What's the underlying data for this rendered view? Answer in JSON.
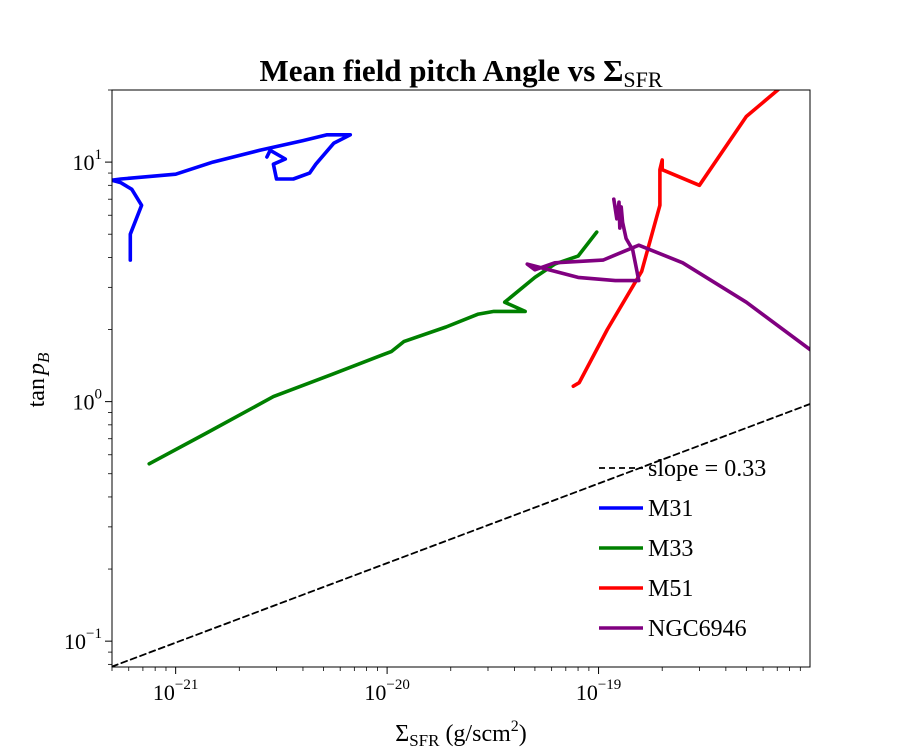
{
  "chart_data": {
    "type": "line",
    "title": "Mean field pitch Angle vs Σ",
    "title_sub": "SFR",
    "xlabel": {
      "base": "Σ",
      "sub": "SFR",
      "rest": " (g/scm",
      "sup": "2",
      "close": ")"
    },
    "ylabel": {
      "pre": "tan",
      "var": "p",
      "sub": "B"
    },
    "x_scale": "log",
    "y_scale": "log",
    "xlim": [
      5e-22,
      1e-18
    ],
    "ylim": [
      0.078,
      20
    ],
    "x_ticks": [
      {
        "value": 1e-21,
        "base": "10",
        "exp": "−21"
      },
      {
        "value": 1e-20,
        "base": "10",
        "exp": "−20"
      },
      {
        "value": 1e-19,
        "base": "10",
        "exp": "−19"
      }
    ],
    "y_ticks": [
      {
        "value": 0.1,
        "base": "10",
        "exp": "−1"
      },
      {
        "value": 1,
        "base": "10",
        "exp": "0"
      },
      {
        "value": 10,
        "base": "10",
        "exp": "1"
      }
    ],
    "grid": false,
    "legend_position": "lower-right",
    "series": [
      {
        "name": "slope = 0.33",
        "color": "#000000",
        "style": "dashed",
        "points": [
          [
            5e-22,
            0.0783
          ],
          [
            1e-18,
            0.977
          ]
        ]
      },
      {
        "name": "M31",
        "color": "#0000ff",
        "style": "solid",
        "points": [
          [
            6.1e-22,
            3.9
          ],
          [
            6.1e-22,
            5.0
          ],
          [
            6.9e-22,
            6.6
          ],
          [
            6.2e-22,
            7.7
          ],
          [
            5.5e-22,
            8.2
          ],
          [
            5e-22,
            8.4
          ],
          [
            5.5e-22,
            8.5
          ],
          [
            1e-21,
            8.9
          ],
          [
            1.5e-21,
            10.0
          ],
          [
            2.5e-21,
            11.2
          ],
          [
            4e-21,
            12.3
          ],
          [
            5.2e-21,
            13.0
          ],
          [
            6.7e-21,
            13.0
          ],
          [
            5.6e-21,
            12.0
          ],
          [
            4.6e-21,
            9.8
          ],
          [
            4.3e-21,
            9.0
          ],
          [
            3.6e-21,
            8.5
          ],
          [
            3e-21,
            8.5
          ],
          [
            2.9e-21,
            9.8
          ],
          [
            3.3e-21,
            10.3
          ],
          [
            2.8e-21,
            11.2
          ],
          [
            2.7e-21,
            10.5
          ]
        ]
      },
      {
        "name": "M33",
        "color": "#008000",
        "style": "solid",
        "points": [
          [
            7.5e-22,
            0.55
          ],
          [
            1.4e-21,
            0.74
          ],
          [
            2.9e-21,
            1.05
          ],
          [
            5.5e-21,
            1.3
          ],
          [
            1.05e-20,
            1.62
          ],
          [
            1.2e-20,
            1.78
          ],
          [
            1.9e-20,
            2.05
          ],
          [
            2.7e-20,
            2.32
          ],
          [
            3.2e-20,
            2.38
          ],
          [
            4.5e-20,
            2.38
          ],
          [
            3.6e-20,
            2.6
          ],
          [
            5e-20,
            3.3
          ],
          [
            6.2e-20,
            3.75
          ],
          [
            8e-20,
            4.05
          ],
          [
            9.8e-20,
            5.1
          ]
        ]
      },
      {
        "name": "M51",
        "color": "#ff0000",
        "style": "solid",
        "points": [
          [
            7.6e-20,
            1.16
          ],
          [
            8.1e-20,
            1.2
          ],
          [
            1.1e-19,
            2.0
          ],
          [
            1.6e-19,
            3.5
          ],
          [
            1.95e-19,
            6.6
          ],
          [
            1.95e-19,
            9.3
          ],
          [
            2e-19,
            10.2
          ],
          [
            2e-19,
            9.3
          ],
          [
            3e-19,
            8.0
          ],
          [
            5e-19,
            15.5
          ],
          [
            8e-19,
            22.0
          ]
        ]
      },
      {
        "name": "NGC6946",
        "color": "#800080",
        "style": "solid",
        "points": [
          [
            1.18e-19,
            7.0
          ],
          [
            1.22e-19,
            5.8
          ],
          [
            1.25e-19,
            6.8
          ],
          [
            1.26e-19,
            5.3
          ],
          [
            1.28e-19,
            6.5
          ],
          [
            1.3e-19,
            5.6
          ],
          [
            1.35e-19,
            4.8
          ],
          [
            1.45e-19,
            4.3
          ],
          [
            1.55e-19,
            3.2
          ],
          [
            1.2e-19,
            3.2
          ],
          [
            8e-20,
            3.3
          ],
          [
            4.6e-20,
            3.75
          ],
          [
            5e-20,
            3.55
          ],
          [
            6.2e-20,
            3.8
          ],
          [
            1.05e-19,
            3.9
          ],
          [
            1.55e-19,
            4.5
          ],
          [
            2.5e-19,
            3.8
          ],
          [
            5e-19,
            2.6
          ],
          [
            1e-18,
            1.65
          ]
        ]
      }
    ]
  }
}
